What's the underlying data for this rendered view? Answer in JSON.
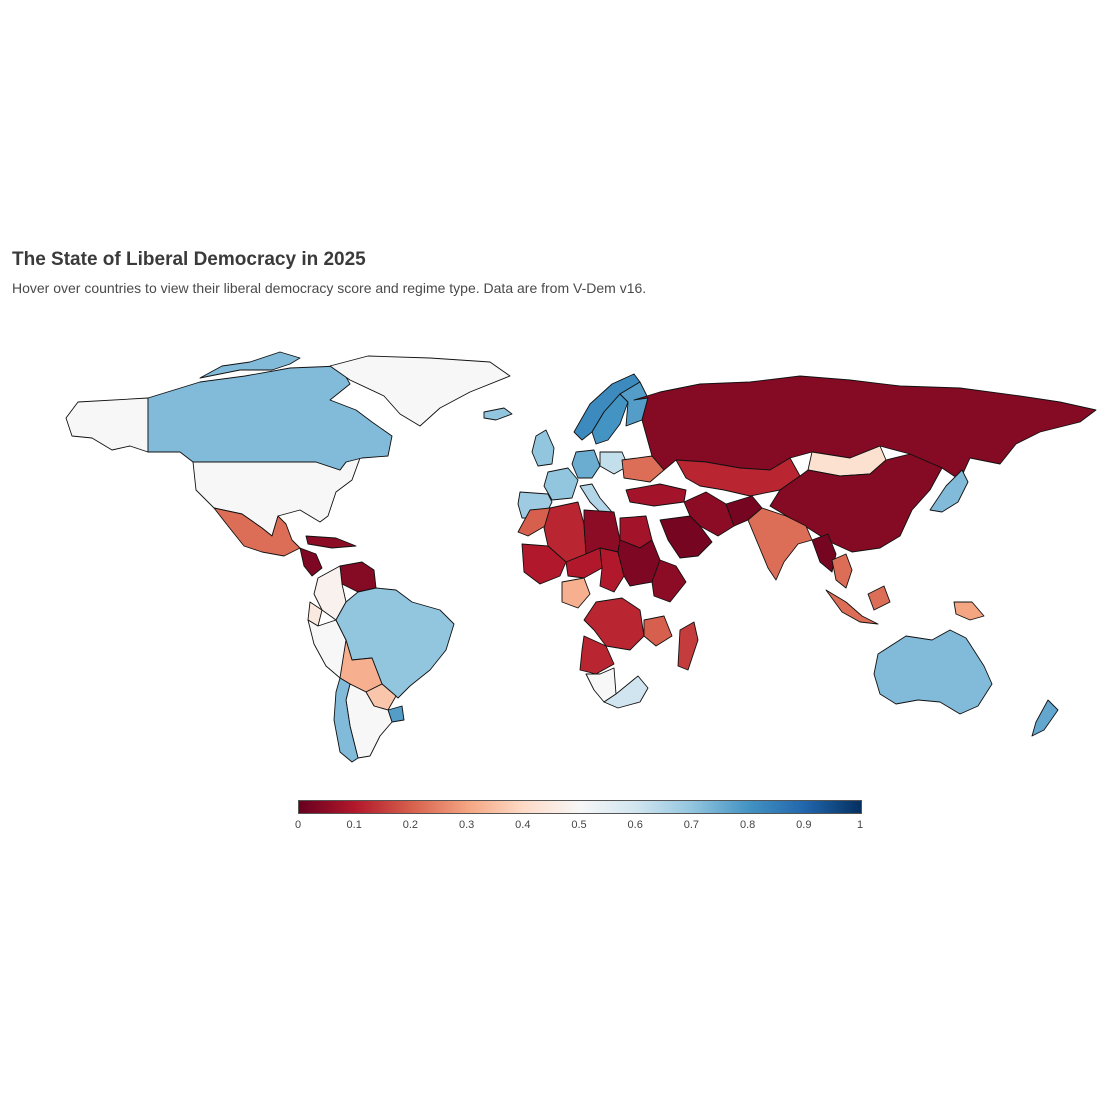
{
  "title": "The State of Liberal Democracy in 2025",
  "subtitle": "Hover over countries to view their liberal democracy score and regime type. Data are from V-Dem v16.",
  "colorscale": {
    "stops": [
      "#67001f",
      "#b2182b",
      "#d6604d",
      "#f4a582",
      "#fddbc7",
      "#f7f7f7",
      "#d1e5f0",
      "#92c5de",
      "#4393c3",
      "#2166ac",
      "#053061"
    ],
    "range": [
      0,
      1
    ],
    "ticks": [
      "0",
      "0.1",
      "0.2",
      "0.3",
      "0.4",
      "0.5",
      "0.6",
      "0.7",
      "0.8",
      "0.9",
      "1"
    ]
  },
  "no_data_color": "#f7f7f7",
  "countries": [
    {
      "name": "United States",
      "score": 0.5
    },
    {
      "name": "Canada",
      "score": 0.72
    },
    {
      "name": "Mexico",
      "score": 0.22
    },
    {
      "name": "Nicaragua",
      "score": 0.03
    },
    {
      "name": "Cuba",
      "score": 0.05
    },
    {
      "name": "Venezuela",
      "score": 0.04
    },
    {
      "name": "Colombia",
      "score": 0.48
    },
    {
      "name": "Ecuador",
      "score": 0.45
    },
    {
      "name": "Peru",
      "score": 0.5
    },
    {
      "name": "Brazil",
      "score": 0.7
    },
    {
      "name": "Bolivia",
      "score": 0.32
    },
    {
      "name": "Paraguay",
      "score": 0.36
    },
    {
      "name": "Argentina",
      "score": 0.5
    },
    {
      "name": "Chile",
      "score": 0.72
    },
    {
      "name": "Uruguay",
      "score": 0.78
    },
    {
      "name": "Greenland",
      "score": 0.5
    },
    {
      "name": "Iceland",
      "score": 0.7
    },
    {
      "name": "Norway",
      "score": 0.82
    },
    {
      "name": "Sweden",
      "score": 0.8
    },
    {
      "name": "Finland",
      "score": 0.78
    },
    {
      "name": "United Kingdom",
      "score": 0.7
    },
    {
      "name": "France",
      "score": 0.7
    },
    {
      "name": "Spain",
      "score": 0.68
    },
    {
      "name": "Germany",
      "score": 0.75
    },
    {
      "name": "Poland",
      "score": 0.62
    },
    {
      "name": "Italy",
      "score": 0.65
    },
    {
      "name": "Ukraine",
      "score": 0.22
    },
    {
      "name": "Turkey",
      "score": 0.08
    },
    {
      "name": "Russia",
      "score": 0.04
    },
    {
      "name": "Kazakhstan",
      "score": 0.12
    },
    {
      "name": "Mongolia",
      "score": 0.42
    },
    {
      "name": "China",
      "score": 0.04
    },
    {
      "name": "Japan",
      "score": 0.72
    },
    {
      "name": "India",
      "score": 0.22
    },
    {
      "name": "Iran",
      "score": 0.05
    },
    {
      "name": "Afghanistan",
      "score": 0.02
    },
    {
      "name": "Saudi Arabia",
      "score": 0.02
    },
    {
      "name": "Egypt",
      "score": 0.08
    },
    {
      "name": "Libya",
      "score": 0.05
    },
    {
      "name": "Algeria",
      "score": 0.12
    },
    {
      "name": "Morocco",
      "score": 0.2
    },
    {
      "name": "Mali",
      "score": 0.1
    },
    {
      "name": "Niger",
      "score": 0.1
    },
    {
      "name": "Chad",
      "score": 0.1
    },
    {
      "name": "Sudan",
      "score": 0.03
    },
    {
      "name": "Ethiopia",
      "score": 0.05
    },
    {
      "name": "Nigeria",
      "score": 0.32
    },
    {
      "name": "DR Congo",
      "score": 0.12
    },
    {
      "name": "Angola",
      "score": 0.12
    },
    {
      "name": "Tanzania",
      "score": 0.2
    },
    {
      "name": "Namibia",
      "score": 0.5
    },
    {
      "name": "South Africa",
      "score": 0.6
    },
    {
      "name": "Madagascar",
      "score": 0.15
    },
    {
      "name": "Myanmar",
      "score": 0.02
    },
    {
      "name": "Thailand",
      "score": 0.22
    },
    {
      "name": "Indonesia",
      "score": 0.22
    },
    {
      "name": "Papua New Guinea",
      "score": 0.3
    },
    {
      "name": "Australia",
      "score": 0.72
    },
    {
      "name": "New Zealand",
      "score": 0.76
    }
  ]
}
